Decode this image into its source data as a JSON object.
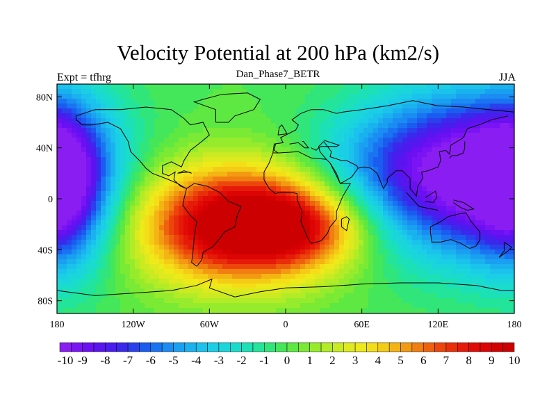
{
  "title": "Velocity Potential at 200 hPa (km2/s)",
  "subtitle": "Dan_Phase7_BETR",
  "left_string": "Expt = tfhrg",
  "right_string": "JJA",
  "chart_data": {
    "type": "heatmap",
    "projection": "cylindrical-equidistant",
    "x_range": [
      -180,
      180
    ],
    "y_range": [
      -90,
      90
    ],
    "x_ticks": [
      {
        "value": -180,
        "label": "180"
      },
      {
        "value": -120,
        "label": "120W"
      },
      {
        "value": -60,
        "label": "60W"
      },
      {
        "value": 0,
        "label": "0"
      },
      {
        "value": 60,
        "label": "60E"
      },
      {
        "value": 120,
        "label": "120E"
      },
      {
        "value": 180,
        "label": "180"
      }
    ],
    "y_ticks": [
      {
        "value": 80,
        "label": "80N"
      },
      {
        "value": 40,
        "label": "40N"
      },
      {
        "value": 0,
        "label": "0"
      },
      {
        "value": -40,
        "label": "40S"
      },
      {
        "value": -80,
        "label": "80S"
      }
    ],
    "fields": [
      {
        "lon": -40,
        "lat": -20,
        "amp": 10.5,
        "sx": 55,
        "sy": 32
      },
      {
        "lon": 10,
        "lat": -22,
        "amp": 4.5,
        "sx": 38,
        "sy": 22
      },
      {
        "lon": 140,
        "lat": 20,
        "amp": -10.5,
        "sx": 55,
        "sy": 45
      },
      {
        "lon": -175,
        "lat": 10,
        "amp": -6.5,
        "sx": 25,
        "sy": 45
      },
      {
        "lon": 60,
        "lat": 25,
        "amp": -2.0,
        "sx": 40,
        "sy": 30
      }
    ],
    "colorbar": {
      "min": -10,
      "max": 10,
      "step": 0.5,
      "labels": [
        "-10",
        "-9",
        "-8",
        "-7",
        "-6",
        "-5",
        "-4",
        "-3",
        "-2",
        "-1",
        "0",
        "1",
        "2",
        "3",
        "4",
        "5",
        "6",
        "7",
        "8",
        "9",
        "10"
      ],
      "colors": [
        "#8a1df2",
        "#7a14f4",
        "#6a10f2",
        "#5a14f0",
        "#4a1cee",
        "#3a28ec",
        "#2a40ec",
        "#1a5cf0",
        "#1a74f2",
        "#1a8cf2",
        "#1aa0f0",
        "#1ab2ee",
        "#1ac2ec",
        "#1acee6",
        "#1ad6da",
        "#1adccc",
        "#1ce0b6",
        "#22e49a",
        "#30e67a",
        "#44e65a",
        "#5ee842",
        "#7aea34",
        "#96ec2c",
        "#b2ec26",
        "#caea22",
        "#deea1e",
        "#eeea1a",
        "#f4de18",
        "#f4cc16",
        "#f4b414",
        "#f29a12",
        "#f07e10",
        "#ee620e",
        "#ec460c",
        "#e92e0a",
        "#e51a08",
        "#e10c06",
        "#dc0404",
        "#d40000",
        "#cc0000"
      ]
    }
  }
}
